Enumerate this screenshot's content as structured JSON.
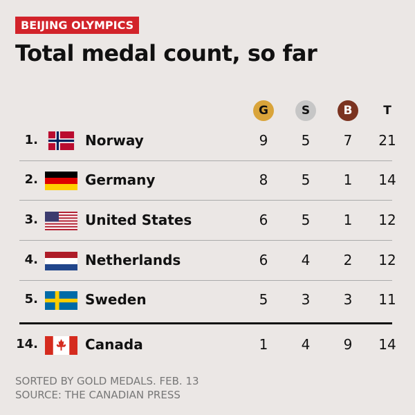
{
  "header": {
    "tag": "BEIJING OLYMPICS",
    "title": "Total medal count, so far"
  },
  "table": {
    "columns": [
      "G",
      "S",
      "B",
      "T"
    ],
    "rows": [
      [
        "1.",
        "Norway",
        "9",
        "5",
        "7",
        "21"
      ],
      [
        "2.",
        "Germany",
        "8",
        "5",
        "1",
        "14"
      ],
      [
        "3.",
        "United States",
        "6",
        "5",
        "1",
        "12"
      ],
      [
        "4.",
        "Netherlands",
        "6",
        "4",
        "2",
        "12"
      ],
      [
        "5.",
        "Sweden",
        "5",
        "3",
        "3",
        "11"
      ],
      [
        "14.",
        "Canada",
        "1",
        "4",
        "9",
        "14"
      ]
    ]
  },
  "footer": {
    "note": "SORTED BY GOLD MEDALS. FEB. 13",
    "source": "SOURCE: THE CANADIAN PRESS"
  }
}
